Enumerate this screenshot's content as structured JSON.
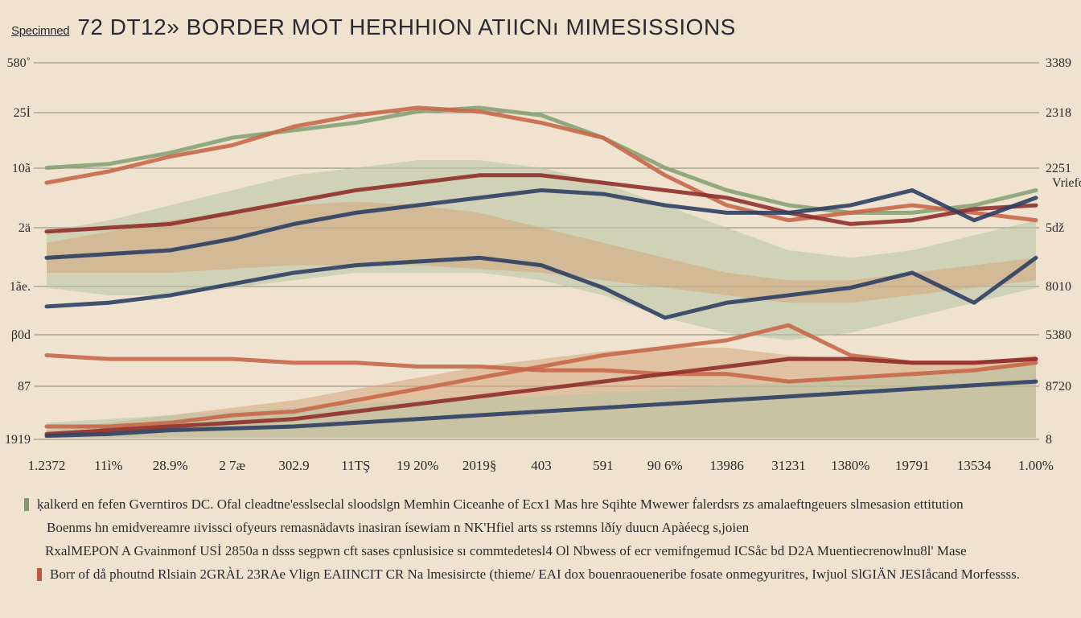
{
  "header": {
    "kicker": "Specimned",
    "title": "72  DT12» BORDER MOT HERHHION ATIICNı MIMESISSIONS"
  },
  "chart_data": {
    "type": "area",
    "title": "72  DT12» BORDER MOT HERHHION ATIICNı MIMESISSIONS",
    "xlabel": "",
    "ylabel": "",
    "grid": true,
    "legend": "none",
    "ylim": [
      0,
      100
    ],
    "left_ticks": [
      "580˚",
      "25İ",
      "10ã",
      "2ä",
      "1ãe.",
      "β0d",
      "87",
      "1919"
    ],
    "right_ticks": [
      "3389",
      "2318",
      "2251",
      "5ǆ",
      "8010",
      "5380",
      "8720",
      "8"
    ],
    "right_ticks_minor": [
      "Vriefσr"
    ],
    "x_ticks": [
      "1.2372",
      "11ì%",
      "28.9%",
      "2 7æ",
      "302.9",
      "11TŞ",
      "19 20%",
      "2019§",
      "403",
      "591",
      "90 6%",
      "13986",
      "31231",
      "1380%",
      "19791",
      "13534",
      "1.00%"
    ],
    "colors": {
      "red": "#8f2f2b",
      "orange": "#c8674a",
      "navy": "#2e3f63",
      "green": "#87a276",
      "tan": "#d3a57d",
      "sage": "#b7c5a4"
    },
    "series": [
      {
        "color": "green",
        "values": [
          72,
          73,
          76,
          80,
          82,
          84,
          87,
          88,
          86,
          80,
          72,
          66,
          62,
          60,
          60,
          62,
          66
        ]
      },
      {
        "color": "orange",
        "values": [
          68,
          71,
          75,
          78,
          83,
          86,
          88,
          87,
          84,
          80,
          70,
          62,
          58,
          60,
          62,
          60,
          58
        ]
      },
      {
        "color": "red",
        "values": [
          55,
          56,
          57,
          60,
          63,
          66,
          68,
          70,
          70,
          68,
          66,
          64,
          60,
          57,
          58,
          61,
          62
        ]
      },
      {
        "color": "navy",
        "values": [
          48,
          49,
          50,
          53,
          57,
          60,
          62,
          64,
          66,
          65,
          62,
          60,
          60,
          62,
          66,
          58,
          64
        ]
      },
      {
        "color": "navy",
        "values": [
          35,
          36,
          38,
          41,
          44,
          46,
          47,
          48,
          46,
          40,
          32,
          36,
          38,
          40,
          44,
          36,
          48
        ]
      },
      {
        "color": "orange",
        "values": [
          22,
          21,
          21,
          21,
          20,
          20,
          19,
          19,
          18,
          18,
          17,
          17,
          15,
          16,
          17,
          18,
          20
        ]
      },
      {
        "color": "orange",
        "values": [
          3,
          3,
          4,
          6,
          7,
          10,
          13,
          16,
          19,
          22,
          24,
          26,
          30,
          22,
          20,
          20,
          21
        ]
      },
      {
        "color": "red",
        "values": [
          1,
          2,
          3,
          4,
          5,
          7,
          9,
          11,
          13,
          15,
          17,
          19,
          21,
          21,
          20,
          20,
          21
        ]
      },
      {
        "color": "navy",
        "values": [
          0.5,
          1,
          2,
          2.5,
          3,
          4,
          5,
          6,
          7,
          8,
          9,
          10,
          11,
          12,
          13,
          14,
          15
        ]
      }
    ],
    "bands": [
      {
        "color": "sage",
        "top": [
          55,
          58,
          62,
          66,
          70,
          72,
          74,
          74,
          72,
          68,
          62,
          56,
          50,
          48,
          50,
          54,
          58
        ],
        "bottom": [
          40,
          38,
          38,
          40,
          42,
          44,
          44,
          44,
          42,
          38,
          32,
          28,
          26,
          28,
          32,
          36,
          40
        ]
      },
      {
        "color": "tan",
        "top": [
          52,
          55,
          58,
          60,
          62,
          63,
          62,
          60,
          56,
          52,
          48,
          44,
          42,
          42,
          44,
          46,
          48
        ],
        "bottom": [
          44,
          44,
          44,
          45,
          46,
          46,
          46,
          45,
          44,
          42,
          40,
          38,
          36,
          36,
          38,
          40,
          42
        ]
      },
      {
        "color": "tan",
        "top": [
          2,
          4,
          6,
          8,
          10,
          13,
          16,
          19,
          21,
          23,
          24,
          24,
          22,
          21,
          20,
          20,
          22
        ],
        "bottom": [
          0,
          0,
          0,
          0,
          0,
          0,
          0,
          0,
          0,
          0,
          0,
          0,
          0,
          0,
          0,
          0,
          0
        ]
      },
      {
        "color": "sage",
        "top": [
          4,
          5,
          6,
          7,
          8,
          9,
          10,
          11,
          11,
          12,
          13,
          14,
          15,
          16,
          17,
          18,
          20
        ],
        "bottom": [
          0,
          0,
          0,
          0,
          0,
          0,
          0,
          0,
          0,
          0,
          0,
          0,
          0,
          0,
          0,
          0,
          0
        ]
      }
    ]
  },
  "notes": [
    {
      "color": "#7f9a6e",
      "text": "ḳalkerd en fefen Gverntiros DC. Ofal cleadtne'esslseclal sloodslgn Memhin Ciceanhe of Ecx1 Mas hre Sqihte Mwewer ḟalerdsrs zs amalaeftngeuers slmesasion ettitution"
    },
    {
      "color": "",
      "text": "Boenms hn emidvereamre ıivissci ofyeurs remasnädavts inasiran ísewiam n NK'Hfiel arts ss rstemns lðíy duucn Apàéecg s,joien"
    },
    {
      "color": "",
      "text": "RxalMEPON A Gvainmonf USİ 2850a n dsss segpwn cft sases cpnlusisice sı commtedetesl4 Ol Nbwess of ecr vemifngemud ICSåc bd D2A Muentiecrenowlnu8l' Mase"
    },
    {
      "color": "#c2583f",
      "text": "Borr of då phoutnd Rlsiain 2GRÀL 23RAe Vlign EAIINCIT CR Na lmesisircte (thieme/ EAI dox bouenraoueneribe fosate onmegyuritres, Iwjuol SlGIÄN JESIåcand Morfessss."
    }
  ]
}
